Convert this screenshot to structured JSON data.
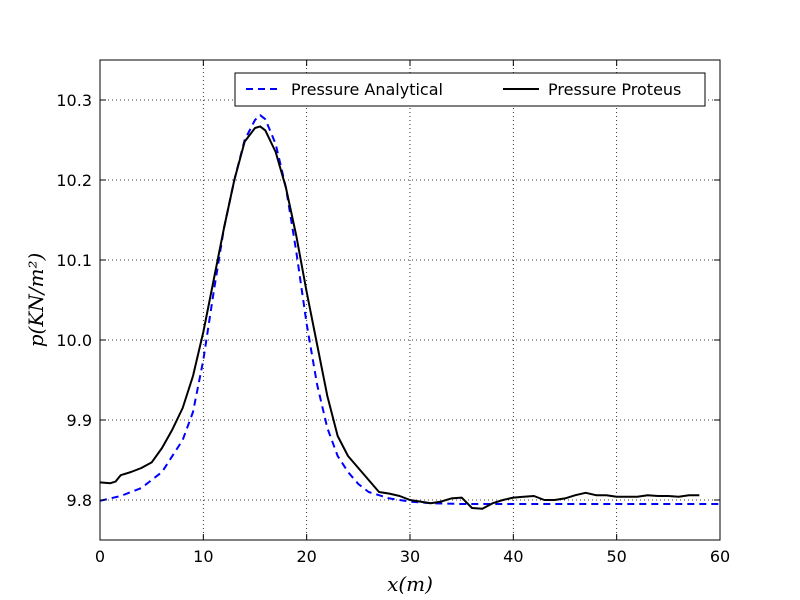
{
  "chart_data": {
    "type": "line",
    "xlabel": "x(m)",
    "ylabel": "p(KN/m²)",
    "xlim": [
      0,
      60
    ],
    "ylim": [
      9.75,
      10.35
    ],
    "x_ticks": [
      0,
      10,
      20,
      30,
      40,
      50,
      60
    ],
    "y_ticks": [
      9.8,
      9.9,
      10.0,
      10.1,
      10.2,
      10.3
    ],
    "x_tick_labels": [
      "0",
      "10",
      "20",
      "30",
      "40",
      "50",
      "60"
    ],
    "y_tick_labels": [
      "9.8",
      "9.9",
      "10.0",
      "10.1",
      "10.2",
      "10.3"
    ],
    "grid": true,
    "grid_style": "dotted",
    "legend_position": "top-right",
    "legend_columns": 2,
    "series": [
      {
        "name": "Pressure Analytical",
        "color": "#0000ff",
        "style": "dashed",
        "x": [
          0,
          2,
          4,
          6,
          8,
          9,
          10,
          11,
          12,
          13,
          14,
          15,
          15.5,
          16,
          17,
          18,
          19,
          20,
          21,
          22,
          23,
          24,
          25,
          26,
          28,
          30,
          32,
          35,
          40,
          45,
          50,
          55,
          60
        ],
        "y": [
          9.799,
          9.805,
          9.815,
          9.835,
          9.875,
          9.91,
          9.975,
          10.06,
          10.14,
          10.2,
          10.25,
          10.275,
          10.281,
          10.276,
          10.245,
          10.19,
          10.11,
          10.02,
          9.945,
          9.89,
          9.855,
          9.835,
          9.82,
          9.81,
          9.802,
          9.798,
          9.796,
          9.795,
          9.795,
          9.795,
          9.795,
          9.795,
          9.795
        ]
      },
      {
        "name": "Pressure Proteus",
        "color": "#000000",
        "style": "solid",
        "x": [
          0,
          1,
          1.5,
          2,
          3,
          4,
          5,
          6,
          7,
          8,
          9,
          10,
          11,
          12,
          13,
          14,
          15,
          15.5,
          16,
          17,
          18,
          19,
          20,
          21,
          22,
          23,
          24,
          25,
          26,
          27,
          28,
          29,
          30,
          31,
          32,
          33,
          34,
          35,
          36,
          37,
          38,
          39,
          40,
          41,
          42,
          43,
          44,
          45,
          46,
          47,
          48,
          49,
          50,
          51,
          52,
          53,
          54,
          55,
          56,
          57,
          58
        ],
        "y": [
          9.822,
          9.821,
          9.823,
          9.831,
          9.835,
          9.84,
          9.847,
          9.865,
          9.888,
          9.915,
          9.955,
          10.01,
          10.075,
          10.14,
          10.2,
          10.248,
          10.265,
          10.267,
          10.262,
          10.235,
          10.19,
          10.13,
          10.06,
          9.995,
          9.93,
          9.88,
          9.855,
          9.84,
          9.825,
          9.81,
          9.808,
          9.805,
          9.8,
          9.798,
          9.796,
          9.798,
          9.802,
          9.803,
          9.79,
          9.789,
          9.796,
          9.8,
          9.803,
          9.804,
          9.805,
          9.8,
          9.8,
          9.802,
          9.806,
          9.809,
          9.806,
          9.806,
          9.804,
          9.804,
          9.804,
          9.806,
          9.805,
          9.805,
          9.804,
          9.806,
          9.806
        ]
      }
    ]
  }
}
